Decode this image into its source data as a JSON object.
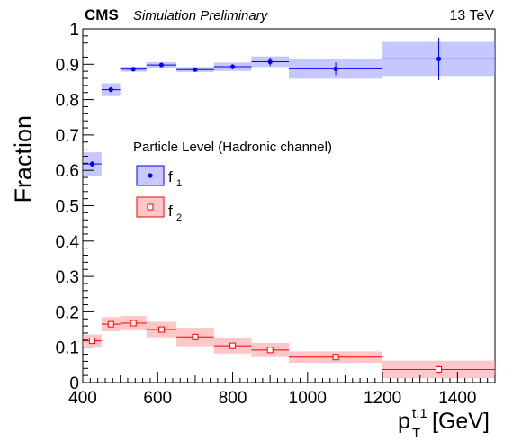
{
  "header": {
    "experiment": "CMS",
    "status": "Simulation Preliminary",
    "energy": "13 TeV"
  },
  "chart_data": {
    "type": "scatter",
    "xlabel": {
      "base": "p",
      "superscript": "t,1",
      "subscript": "T",
      "unit": "[GeV]"
    },
    "ylabel": "Fraction",
    "xlim": [
      400,
      1500
    ],
    "ylim": [
      0,
      1
    ],
    "x_ticks": [
      400,
      600,
      800,
      1000,
      1200,
      1400
    ],
    "y_ticks": [
      0,
      0.1,
      0.2,
      0.3,
      0.4,
      0.5,
      0.6,
      0.7,
      0.8,
      0.9,
      1
    ],
    "bins": [
      [
        400,
        450
      ],
      [
        450,
        500
      ],
      [
        500,
        570
      ],
      [
        570,
        650
      ],
      [
        650,
        750
      ],
      [
        750,
        850
      ],
      [
        850,
        950
      ],
      [
        950,
        1200
      ],
      [
        1200,
        1500
      ]
    ],
    "legend": {
      "title": "Particle Level (Hadronic channel)",
      "placement": "middle-left"
    },
    "series": [
      {
        "name": "f",
        "subscript": "1",
        "marker": "filled-circle",
        "color": "#0000ff",
        "band_color": "#9999ff",
        "x": [
          425,
          475,
          535,
          610,
          700,
          800,
          900,
          1075,
          1350
        ],
        "y": [
          0.618,
          0.828,
          0.886,
          0.898,
          0.885,
          0.893,
          0.907,
          0.887,
          0.915
        ],
        "yerr": [
          0.008,
          0.007,
          0.004,
          0.006,
          0.005,
          0.007,
          0.012,
          0.018,
          0.06
        ],
        "band": [
          0.033,
          0.018,
          0.007,
          0.008,
          0.007,
          0.012,
          0.015,
          0.028,
          0.048
        ]
      },
      {
        "name": "f",
        "subscript": "2",
        "marker": "open-square",
        "color": "#ff0000",
        "band_color": "#ff9999",
        "x": [
          425,
          475,
          535,
          610,
          700,
          800,
          900,
          1075,
          1350
        ],
        "y": [
          0.118,
          0.165,
          0.168,
          0.15,
          0.129,
          0.104,
          0.092,
          0.072,
          0.037
        ],
        "yerr": [
          0.003,
          0.004,
          0.004,
          0.004,
          0.005,
          0.005,
          0.006,
          0.008,
          0.01
        ],
        "band": [
          0.018,
          0.02,
          0.02,
          0.022,
          0.026,
          0.022,
          0.02,
          0.016,
          0.025
        ]
      }
    ]
  }
}
